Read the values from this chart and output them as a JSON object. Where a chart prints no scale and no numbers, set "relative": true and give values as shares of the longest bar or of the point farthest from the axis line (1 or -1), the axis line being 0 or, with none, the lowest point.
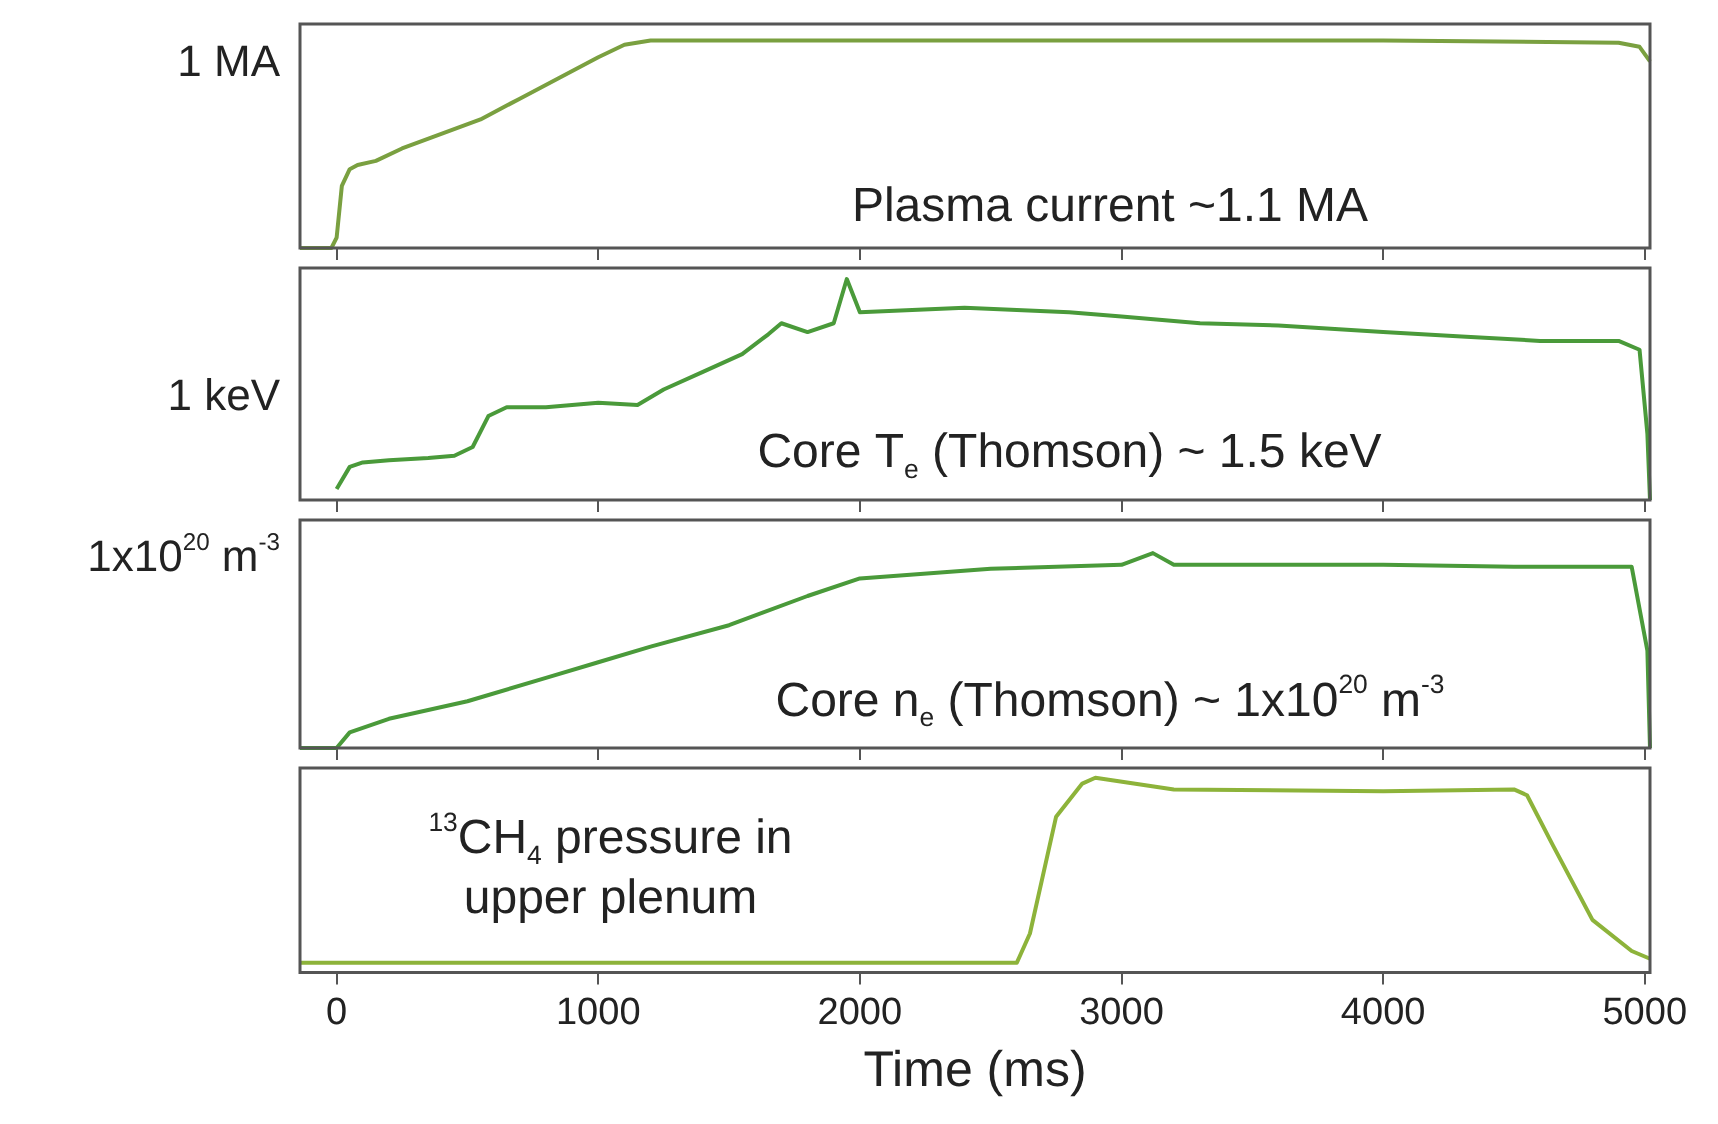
{
  "chart_data": [
    {
      "type": "line",
      "relative": true,
      "annotations": [
        "Plasma current ~1.1 MA",
        "1 MA"
      ],
      "xlim": [
        -140,
        5020
      ],
      "xticks": [
        0,
        1000,
        2000,
        3000,
        4000,
        5000
      ],
      "tick_labels": false,
      "x": [
        -140,
        -20,
        0,
        20,
        50,
        80,
        150,
        250,
        400,
        550,
        700,
        850,
        1000,
        1100,
        1200,
        2000,
        3000,
        4000,
        4900,
        4980,
        5020
      ],
      "series": [
        {
          "color": "#7aa040",
          "values": [
            0,
            0,
            0.05,
            0.3,
            0.38,
            0.4,
            0.42,
            0.48,
            0.55,
            0.62,
            0.72,
            0.82,
            0.92,
            0.98,
            1.0,
            1.0,
            1.0,
            1.0,
            0.99,
            0.97,
            0.9
          ]
        }
      ]
    },
    {
      "type": "line",
      "relative": true,
      "annotations": [
        "Core T$_{e}$ (Thomson) ~ 1.5 keV",
        "1 keV"
      ],
      "xlim": [
        -140,
        5020
      ],
      "xticks": [
        0,
        1000,
        2000,
        3000,
        4000,
        5000
      ],
      "tick_labels": false,
      "x": [
        0,
        50,
        100,
        200,
        350,
        450,
        520,
        580,
        650,
        800,
        1000,
        1150,
        1250,
        1400,
        1550,
        1650,
        1700,
        1800,
        1900,
        1950,
        2000,
        2200,
        2400,
        2600,
        2800,
        3000,
        3300,
        3600,
        4000,
        4300,
        4600,
        4900,
        4980,
        5010,
        5020
      ],
      "series": [
        {
          "color": "#4a9a3a",
          "values": [
            0.05,
            0.15,
            0.17,
            0.18,
            0.19,
            0.2,
            0.24,
            0.38,
            0.42,
            0.42,
            0.44,
            0.43,
            0.5,
            0.58,
            0.66,
            0.75,
            0.8,
            0.76,
            0.8,
            1.0,
            0.85,
            0.86,
            0.87,
            0.86,
            0.85,
            0.83,
            0.8,
            0.79,
            0.76,
            0.74,
            0.72,
            0.72,
            0.68,
            0.3,
            0
          ]
        }
      ]
    },
    {
      "type": "line",
      "relative": true,
      "annotations": [
        "Core n$_{e}$ (Thomson) ~ 1x10$^{20}$ m$^{-3}$",
        "1x10$^{20}$ m$^{-3}$"
      ],
      "xlim": [
        -140,
        5020
      ],
      "xticks": [
        0,
        1000,
        2000,
        3000,
        4000,
        5000
      ],
      "tick_labels": false,
      "x": [
        -140,
        0,
        50,
        200,
        500,
        800,
        1000,
        1200,
        1500,
        1800,
        2000,
        2500,
        3000,
        3120,
        3200,
        4000,
        4500,
        4950,
        5010,
        5020
      ],
      "series": [
        {
          "color": "#4a9a3a",
          "values": [
            0,
            0,
            0.08,
            0.15,
            0.24,
            0.36,
            0.44,
            0.52,
            0.63,
            0.78,
            0.87,
            0.92,
            0.94,
            1.0,
            0.94,
            0.94,
            0.93,
            0.93,
            0.5,
            0
          ]
        }
      ]
    },
    {
      "type": "line",
      "relative": true,
      "xlabel": "Time (ms)",
      "annotations": [
        "$^{13}$CH$_{4}$ pressure in upper plenum"
      ],
      "xlim": [
        -140,
        5020
      ],
      "xticks": [
        0,
        1000,
        2000,
        3000,
        4000,
        5000
      ],
      "tick_labels": "x",
      "x": [
        -140,
        1000,
        2000,
        2600,
        2650,
        2750,
        2850,
        2900,
        3200,
        4000,
        4500,
        4550,
        4650,
        4800,
        4950,
        5020
      ],
      "series": [
        {
          "color": "#8db33a",
          "values": [
            0.05,
            0.05,
            0.05,
            0.05,
            0.2,
            0.8,
            0.97,
            1.0,
            0.94,
            0.93,
            0.94,
            0.91,
            0.65,
            0.27,
            0.11,
            0.07
          ]
        }
      ]
    }
  ]
}
